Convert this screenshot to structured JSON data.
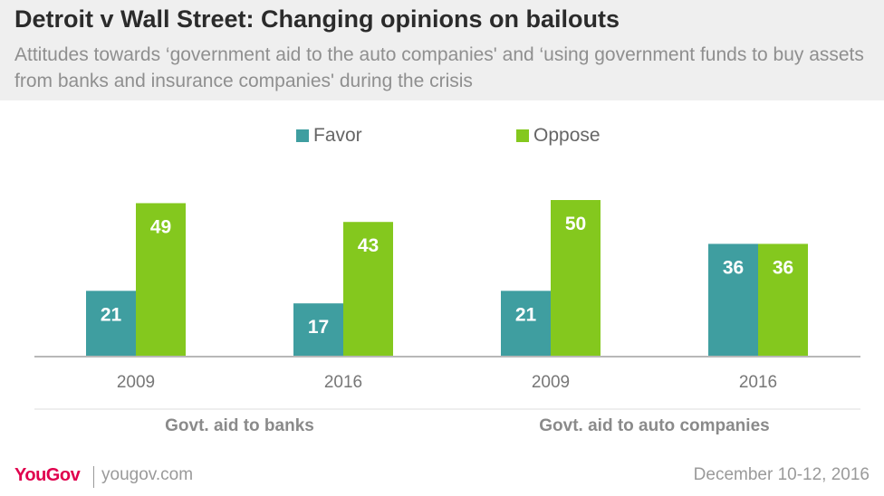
{
  "header": {
    "title": "Detroit v Wall Street: Changing opinions on bailouts",
    "subtitle": "Attitudes towards ‘government aid to the auto companies' and ‘using government funds to buy assets from banks and insurance companies' during the crisis"
  },
  "colors": {
    "favor": "#3f9ea0",
    "oppose": "#84c81e",
    "axis": "#b8b8b8",
    "tick_text": "#777777",
    "group_text": "#8a8a8a",
    "brand": "#e0004d",
    "header_bg": "#efefef"
  },
  "legend": {
    "favor_label": "Favor",
    "oppose_label": "Oppose"
  },
  "chart_data": {
    "type": "bar",
    "legend_placement": "top-center",
    "grid": false,
    "ylim": [
      0,
      60
    ],
    "series": [
      {
        "name": "Favor",
        "values": [
          21,
          17,
          21,
          36
        ]
      },
      {
        "name": "Oppose",
        "values": [
          49,
          43,
          50,
          36
        ]
      }
    ],
    "categories": [
      "2009",
      "2016",
      "2009",
      "2016"
    ],
    "groups": [
      {
        "label": "Govt. aid to banks",
        "categories": [
          "2009",
          "2016"
        ]
      },
      {
        "label": "Govt. aid to auto companies",
        "categories": [
          "2009",
          "2016"
        ]
      }
    ]
  },
  "footer": {
    "logo": "YouGov",
    "site": "yougov.com",
    "date": "December 10-12, 2016"
  }
}
